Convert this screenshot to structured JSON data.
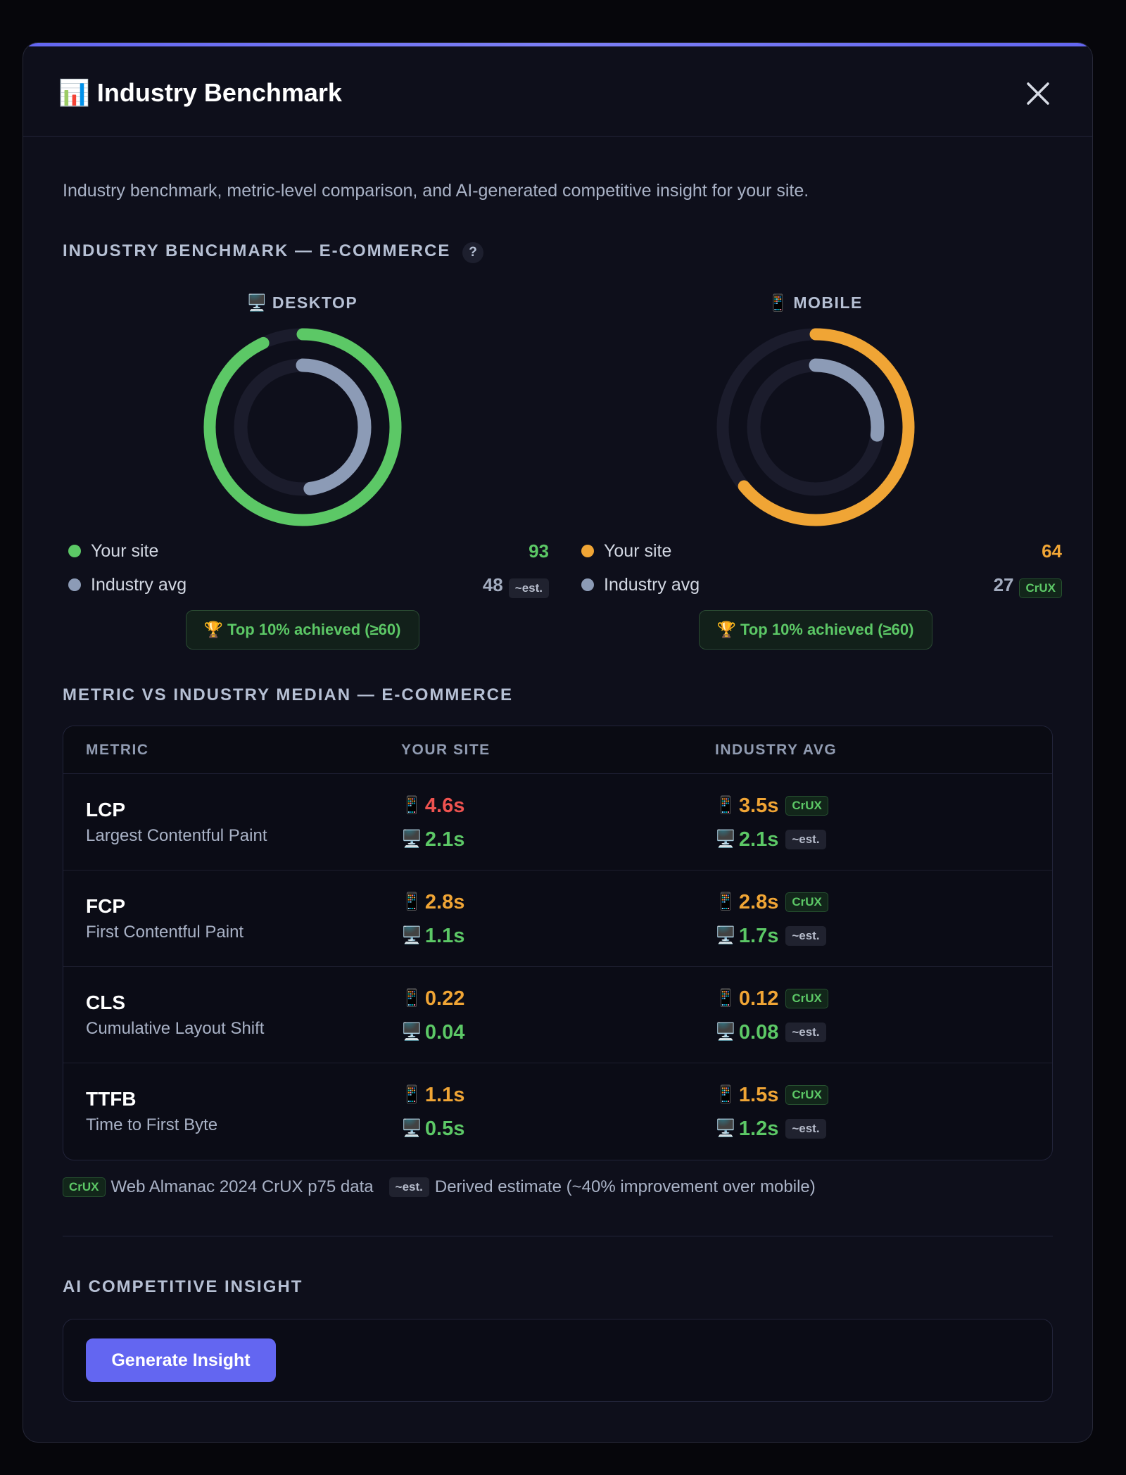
{
  "header": {
    "icon": "📊",
    "title": "Industry Benchmark"
  },
  "description": "Industry benchmark, metric-level comparison, and AI-generated competitive insight for your site.",
  "device_icons": {
    "desktop": "🖥️",
    "mobile": "📱"
  },
  "benchmark": {
    "heading": "INDUSTRY BENCHMARK — E-COMMERCE",
    "help": "?",
    "industry_color": "#8c9bb6",
    "panels": [
      {
        "device": "desktop",
        "label": "DESKTOP",
        "color": "#5cc866",
        "your_site_label": "Your site",
        "your_site": 93,
        "industry_label": "Industry avg",
        "industry_avg": 48,
        "source": "~est.",
        "achievement": "🏆 Top 10% achieved (≥60)"
      },
      {
        "device": "mobile",
        "label": "MOBILE",
        "color": "#f0a535",
        "your_site_label": "Your site",
        "your_site": 64,
        "industry_label": "Industry avg",
        "industry_avg": 27,
        "source": "CrUX",
        "achievement": "🏆 Top 10% achieved (≥60)"
      }
    ]
  },
  "table": {
    "heading": "METRIC VS INDUSTRY MEDIAN — E-COMMERCE",
    "columns": [
      "METRIC",
      "YOUR SITE",
      "INDUSTRY AVG"
    ],
    "rows": [
      {
        "metric": "LCP",
        "name": "Largest Contentful Paint",
        "your_site": {
          "mobile": "4.6s",
          "mobile_color": "#ef5350",
          "desktop": "2.1s",
          "desktop_color": "#5cc866"
        },
        "industry": {
          "mobile": "3.5s",
          "mobile_color": "#f0a535",
          "mobile_source": "CrUX",
          "desktop": "2.1s",
          "desktop_color": "#5cc866",
          "desktop_source": "~est."
        }
      },
      {
        "metric": "FCP",
        "name": "First Contentful Paint",
        "your_site": {
          "mobile": "2.8s",
          "mobile_color": "#f0a535",
          "desktop": "1.1s",
          "desktop_color": "#5cc866"
        },
        "industry": {
          "mobile": "2.8s",
          "mobile_color": "#f0a535",
          "mobile_source": "CrUX",
          "desktop": "1.7s",
          "desktop_color": "#5cc866",
          "desktop_source": "~est."
        }
      },
      {
        "metric": "CLS",
        "name": "Cumulative Layout Shift",
        "your_site": {
          "mobile": "0.22",
          "mobile_color": "#f0a535",
          "desktop": "0.04",
          "desktop_color": "#5cc866"
        },
        "industry": {
          "mobile": "0.12",
          "mobile_color": "#f0a535",
          "mobile_source": "CrUX",
          "desktop": "0.08",
          "desktop_color": "#5cc866",
          "desktop_source": "~est."
        }
      },
      {
        "metric": "TTFB",
        "name": "Time to First Byte",
        "your_site": {
          "mobile": "1.1s",
          "mobile_color": "#f0a535",
          "desktop": "0.5s",
          "desktop_color": "#5cc866"
        },
        "industry": {
          "mobile": "1.5s",
          "mobile_color": "#f0a535",
          "mobile_source": "CrUX",
          "desktop": "1.2s",
          "desktop_color": "#5cc866",
          "desktop_source": "~est."
        }
      }
    ],
    "footnotes": [
      {
        "badge": "CrUX",
        "text": "Web Almanac 2024 CrUX p75 data"
      },
      {
        "badge": "~est.",
        "text": "Derived estimate (~40% improvement over mobile)"
      }
    ]
  },
  "insight": {
    "heading": "AI COMPETITIVE INSIGHT",
    "button": "Generate Insight"
  }
}
